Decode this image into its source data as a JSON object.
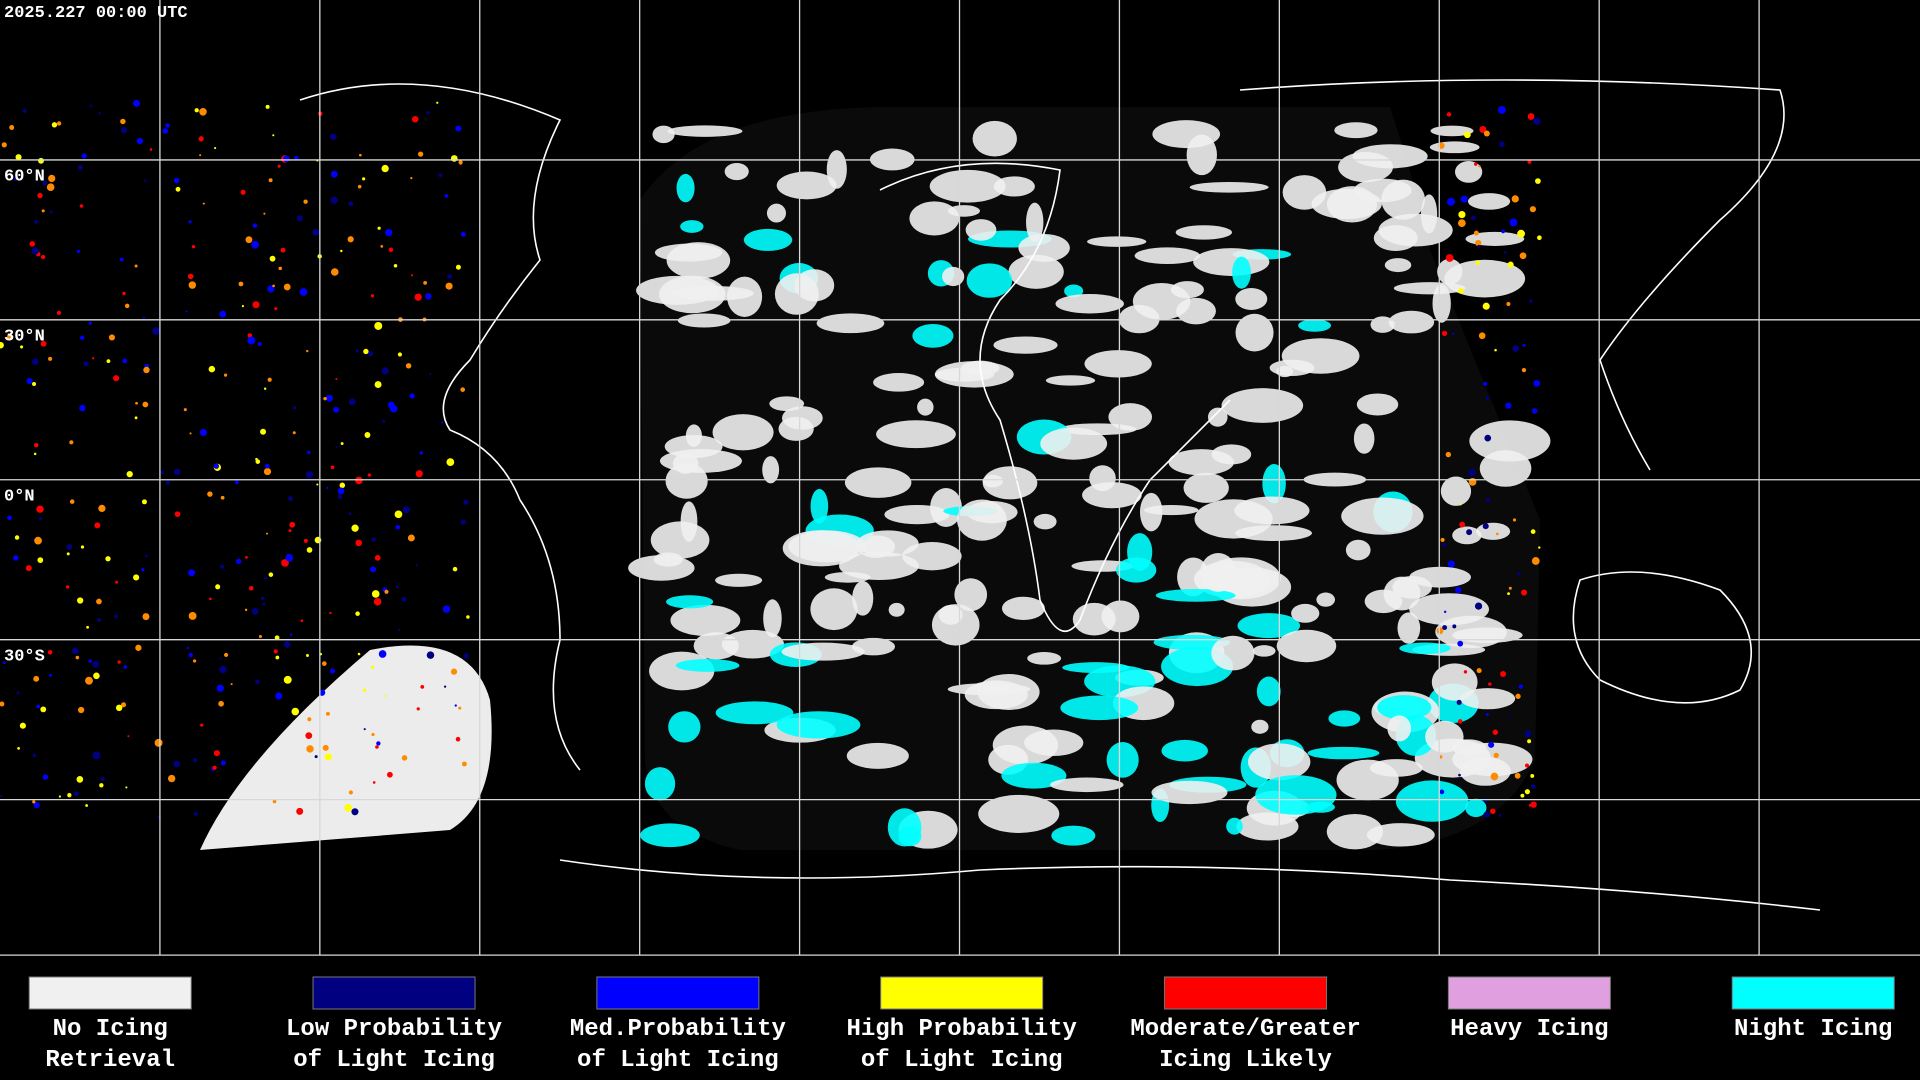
{
  "title": "2025.227 00:00 UTC",
  "latitude_labels": [
    "60°N",
    "30°N",
    "0°N",
    "30°S"
  ],
  "legend": [
    {
      "color": "#f0f0f0",
      "lines": [
        "No Icing",
        "Retrieval"
      ]
    },
    {
      "color": "#000080",
      "lines": [
        "Low Probability",
        "of Light Icing"
      ]
    },
    {
      "color": "#0000ff",
      "lines": [
        "Med.Probability",
        "of Light Icing"
      ]
    },
    {
      "color": "#ffff00",
      "lines": [
        "High Probability",
        "of Light Icing"
      ]
    },
    {
      "color": "#ff0000",
      "lines": [
        "Moderate/Greater",
        "Icing Likely"
      ]
    },
    {
      "color": "#e0a0e0",
      "lines": [
        "Heavy Icing"
      ]
    },
    {
      "color": "#00ffff",
      "lines": [
        "Night Icing"
      ]
    }
  ]
}
